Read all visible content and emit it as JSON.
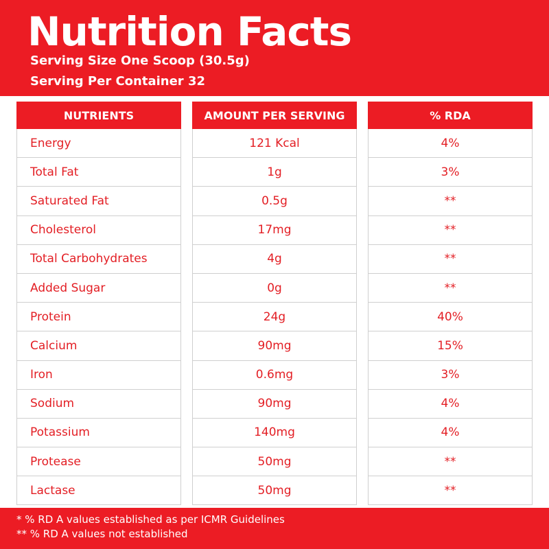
{
  "header": {
    "title": "Nutrition Facts",
    "serving_size": "Serving Size One Scoop (30.5g)",
    "servings": "Serving Per Container 32"
  },
  "table": {
    "columns": [
      "NUTRIENTS",
      "AMOUNT PER SERVING",
      "% RDA"
    ],
    "rows": [
      [
        "Energy",
        "121 Kcal",
        "4%"
      ],
      [
        "Total Fat",
        "1g",
        "3%"
      ],
      [
        "Saturated Fat",
        "0.5g",
        "**"
      ],
      [
        "Cholesterol",
        "17mg",
        "**"
      ],
      [
        "Total Carbohydrates",
        "4g",
        "**"
      ],
      [
        "Added Sugar",
        "0g",
        "**"
      ],
      [
        "Protein",
        "24g",
        "40%"
      ],
      [
        "Calcium",
        "90mg",
        "15%"
      ],
      [
        "Iron",
        "0.6mg",
        "3%"
      ],
      [
        "Sodium",
        "90mg",
        "4%"
      ],
      [
        "Potassium",
        "140mg",
        "4%"
      ],
      [
        "Protease",
        "50mg",
        "**"
      ],
      [
        "Lactase",
        "50mg",
        "**"
      ]
    ]
  },
  "footer": {
    "notes": [
      "* % RD A values established as per ICMR Guidelines",
      "** % RD A values not established"
    ]
  }
}
